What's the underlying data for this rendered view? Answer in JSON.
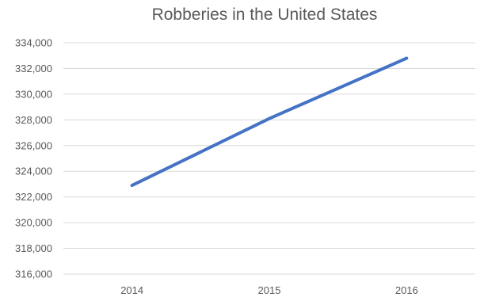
{
  "chart_data": {
    "type": "line",
    "title": "Robberies in the United States",
    "xlabel": "",
    "ylabel": "",
    "categories": [
      "2014",
      "2015",
      "2016"
    ],
    "series": [
      {
        "values": [
          322900,
          328100,
          332800
        ],
        "color": "#4472c4"
      }
    ],
    "ylim": [
      316000,
      334000
    ],
    "ytick_step": 2000,
    "y_tick_labels": [
      "316,000",
      "318,000",
      "320,000",
      "322,000",
      "324,000",
      "326,000",
      "328,000",
      "330,000",
      "332,000",
      "334,000"
    ],
    "grid": true,
    "legend": "none"
  }
}
